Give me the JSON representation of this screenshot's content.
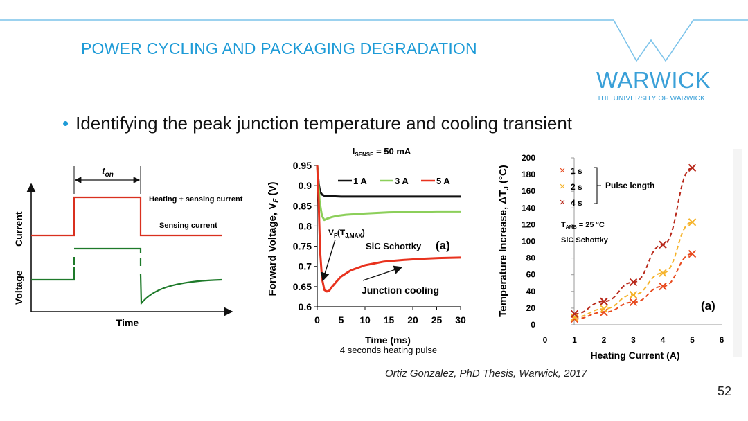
{
  "slide": {
    "title": "POWER CYCLING AND PACKAGING DEGRADATION",
    "logo": {
      "name": "WARWICK",
      "subtitle": "THE UNIVERSITY OF WARWICK"
    },
    "bullet": "Identifying the peak junction temperature and cooling transient",
    "citation": "Ortiz Gonzalez, PhD Thesis, Warwick, 2017",
    "page_number": "52",
    "colors": {
      "accent": "#1e9bd7",
      "red": "#d9301f",
      "green": "#1e7a2a"
    }
  },
  "chart_data": [
    {
      "type": "line",
      "panel": "pulse-schematic",
      "xlabel": "Time",
      "ylabel_top": "Current",
      "ylabel_bottom": "Voltage",
      "pulse_label_t": "t",
      "pulse_label_sub": "on",
      "annotations": [
        "Heating + sensing current",
        "Sensing current"
      ],
      "series": [
        {
          "name": "Current",
          "color": "#d9301f"
        },
        {
          "name": "Voltage",
          "color": "#1e7a2a"
        }
      ]
    },
    {
      "type": "line",
      "panel": "forward-voltage",
      "title_main": "I",
      "title_sub": "SENSE",
      "title_rest": " = 50 mA",
      "xlabel": "Time (ms)",
      "ylabel": "Forward Voltage, V",
      "ylabel_sub": "F",
      "ylabel_unit": " (V)",
      "subcaption": "4 seconds heating pulse",
      "annotations": {
        "vf_label": "V",
        "vf_sub1": "F",
        "vf_paren_open": "(T",
        "vf_sub2": "J,MAX",
        "vf_paren_close": ")",
        "device": "SiC Schottky",
        "panel_tag": "(a)",
        "cooling": "Junction cooling"
      },
      "xlim": [
        0,
        30
      ],
      "ylim": [
        0.6,
        0.95
      ],
      "xticks": [
        "0",
        "5",
        "10",
        "15",
        "20",
        "25",
        "30"
      ],
      "yticks": [
        "0.6",
        "0.65",
        "0.7",
        "0.75",
        "0.8",
        "0.85",
        "0.9",
        "0.95"
      ],
      "legend": [
        "1 A",
        "3 A",
        "5 A"
      ],
      "series": [
        {
          "name": "1 A",
          "color": "#111111",
          "x": [
            0,
            0.3,
            0.6,
            1,
            1.5,
            2,
            3,
            5,
            10,
            20,
            30
          ],
          "y": [
            0.95,
            0.905,
            0.885,
            0.878,
            0.875,
            0.874,
            0.874,
            0.873,
            0.873,
            0.873,
            0.873
          ]
        },
        {
          "name": "3 A",
          "color": "#8ccf5a",
          "x": [
            0,
            0.5,
            1,
            1.5,
            2,
            3,
            4,
            6,
            10,
            15,
            20,
            25,
            30
          ],
          "y": [
            0.95,
            0.86,
            0.825,
            0.815,
            0.818,
            0.822,
            0.825,
            0.828,
            0.831,
            0.834,
            0.835,
            0.836,
            0.836
          ]
        },
        {
          "name": "5 A",
          "color": "#e8321e",
          "x": [
            0,
            0.3,
            0.6,
            1,
            1.5,
            2,
            2.5,
            3,
            4,
            5,
            7,
            10,
            14,
            18,
            22,
            26,
            30
          ],
          "y": [
            0.95,
            0.86,
            0.74,
            0.67,
            0.642,
            0.638,
            0.64,
            0.648,
            0.662,
            0.675,
            0.69,
            0.703,
            0.712,
            0.716,
            0.719,
            0.721,
            0.722
          ]
        }
      ]
    },
    {
      "type": "scatter",
      "panel": "temperature-increase",
      "xlabel": "Heating Current (A)",
      "ylabel": "Temperature Increase, ΔT",
      "ylabel_sub": "J",
      "ylabel_unit": " (°C)",
      "xlim": [
        0,
        6
      ],
      "ylim": [
        0,
        200
      ],
      "xticks": [
        "0",
        "1",
        "2",
        "3",
        "4",
        "5",
        "6"
      ],
      "yticks": [
        "0",
        "20",
        "40",
        "60",
        "80",
        "100",
        "120",
        "140",
        "160",
        "180",
        "200"
      ],
      "legend_group_label": "Pulse length",
      "annotations": {
        "tamb_main": "T",
        "tamb_sub": "AMB",
        "tamb_rest": " = 25 °C",
        "device": "SiC Schottky",
        "panel_tag": "(a)"
      },
      "series": [
        {
          "name": "1 s",
          "color": "#e84a1e",
          "x": [
            1,
            2,
            3,
            4,
            5
          ],
          "y": [
            7,
            15,
            27,
            46,
            85
          ]
        },
        {
          "name": "2 s",
          "color": "#f5b32b",
          "x": [
            1,
            2,
            3,
            4,
            5
          ],
          "y": [
            9,
            19,
            36,
            62,
            123
          ]
        },
        {
          "name": "4 s",
          "color": "#b8281a",
          "x": [
            1,
            2,
            3,
            4,
            5
          ],
          "y": [
            13,
            28,
            51,
            96,
            188
          ]
        }
      ]
    }
  ]
}
